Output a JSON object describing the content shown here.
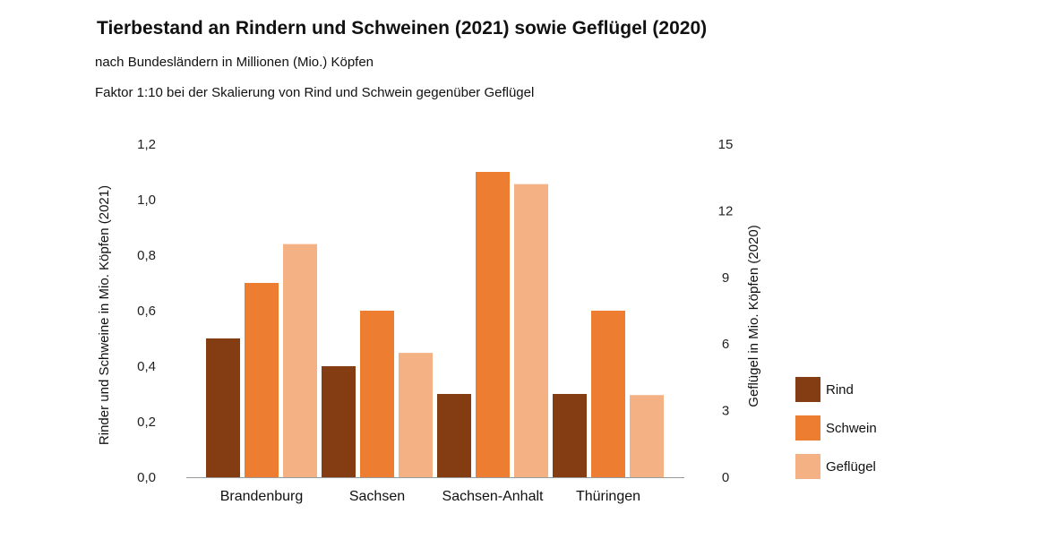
{
  "chart_data": {
    "type": "bar",
    "title": "Tierbestand an Rindern und Schweinen (2021) sowie Geflügel (2020)",
    "subtitle": "nach Bundesländern in Millionen (Mio.) Köpfen",
    "note": "Faktor 1:10 bei der Skalierung von Rind und Schwein gegenüber Geflügel",
    "categories": [
      "Brandenburg",
      "Sachsen",
      "Sachsen-Anhalt",
      "Thüringen"
    ],
    "series": [
      {
        "name": "Rind",
        "axis": "left",
        "color": "#843c13",
        "values": [
          0.5,
          0.4,
          0.3,
          0.3
        ]
      },
      {
        "name": "Schwein",
        "axis": "left",
        "color": "#ed7d31",
        "values": [
          0.7,
          0.6,
          1.1,
          0.6
        ]
      },
      {
        "name": "Geflügel",
        "axis": "right",
        "color": "#f4b183",
        "values": [
          10.5,
          5.6,
          13.2,
          3.7
        ]
      }
    ],
    "ylabel_left": "Rinder und Schweine in Mio. Köpfen (2021)",
    "ylabel_right": "Geflügel in Mio. Köpfen (2020)",
    "ylim_left": [
      0,
      1.2
    ],
    "ylim_right": [
      0,
      15
    ],
    "yticks_left": [
      "0,0",
      "0,2",
      "0,4",
      "0,6",
      "0,8",
      "1,0",
      "1,2"
    ],
    "yticks_right": [
      "0",
      "3",
      "6",
      "9",
      "12",
      "15"
    ],
    "grid": false,
    "legend_position": "right"
  }
}
